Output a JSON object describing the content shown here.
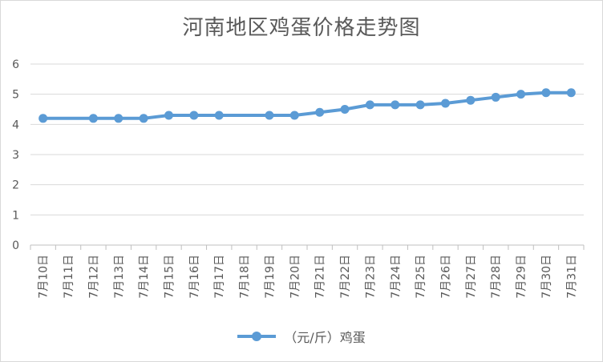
{
  "chart_data": {
    "type": "line",
    "title": "河南地区鸡蛋价格走势图",
    "categories": [
      "7月10日",
      "7月11日",
      "7月12日",
      "7月13日",
      "7月14日",
      "7月15日",
      "7月16日",
      "7月17日",
      "7月18日",
      "7月19日",
      "7月20日",
      "7月21日",
      "7月22日",
      "7月23日",
      "7月24日",
      "7月25日",
      "7月26日",
      "7月27日",
      "7月28日",
      "7月29日",
      "7月30日",
      "7月31日"
    ],
    "series": [
      {
        "name": "（元/斤）鸡蛋",
        "values": [
          4.2,
          null,
          4.2,
          4.2,
          4.2,
          4.3,
          4.3,
          4.3,
          null,
          4.3,
          4.3,
          4.4,
          4.5,
          4.65,
          4.65,
          4.65,
          4.7,
          4.8,
          4.9,
          5.0,
          5.05,
          5.05
        ],
        "color": "#5b9bd5"
      }
    ],
    "yticks": [
      "0",
      "1",
      "2",
      "3",
      "4",
      "5",
      "6"
    ],
    "ylim": [
      0,
      6
    ],
    "grid": true,
    "legend": "bottom"
  }
}
